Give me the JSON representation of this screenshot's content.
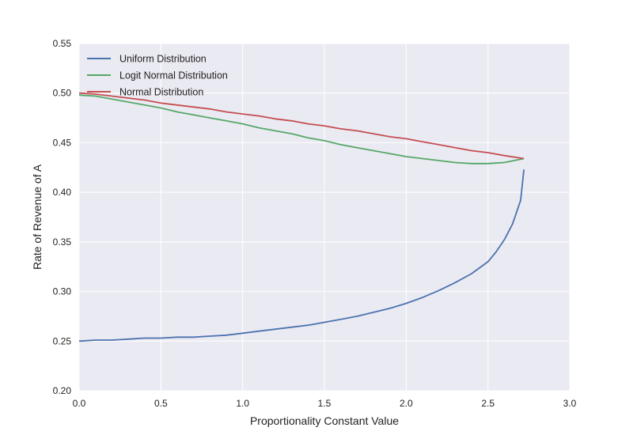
{
  "chart_data": {
    "type": "line",
    "title": "",
    "xlabel": "Proportionality Constant Value",
    "ylabel": "Rate of Revenue of A",
    "xlim": [
      0.0,
      3.0
    ],
    "ylim": [
      0.2,
      0.55
    ],
    "xticks": [
      "0.0",
      "0.5",
      "1.0",
      "1.5",
      "2.0",
      "2.5",
      "3.0"
    ],
    "yticks": [
      "0.20",
      "0.25",
      "0.30",
      "0.35",
      "0.40",
      "0.45",
      "0.50",
      "0.55"
    ],
    "grid": true,
    "legend_position": "top-left",
    "background": "#eaeaf2",
    "series": [
      {
        "name": "Uniform Distribution",
        "color": "#4c72b0",
        "x": [
          0.0,
          0.1,
          0.2,
          0.3,
          0.4,
          0.5,
          0.6,
          0.7,
          0.8,
          0.9,
          1.0,
          1.1,
          1.2,
          1.3,
          1.4,
          1.5,
          1.6,
          1.7,
          1.8,
          1.9,
          2.0,
          2.1,
          2.2,
          2.3,
          2.4,
          2.5,
          2.55,
          2.6,
          2.65,
          2.7,
          2.72
        ],
        "y": [
          0.25,
          0.251,
          0.251,
          0.252,
          0.253,
          0.253,
          0.254,
          0.254,
          0.255,
          0.256,
          0.258,
          0.26,
          0.262,
          0.264,
          0.266,
          0.269,
          0.272,
          0.275,
          0.279,
          0.283,
          0.288,
          0.294,
          0.301,
          0.309,
          0.318,
          0.33,
          0.34,
          0.352,
          0.368,
          0.392,
          0.423
        ]
      },
      {
        "name": "Logit Normal Distribution",
        "color": "#55a868",
        "x": [
          0.0,
          0.1,
          0.2,
          0.3,
          0.4,
          0.5,
          0.6,
          0.7,
          0.8,
          0.9,
          1.0,
          1.1,
          1.2,
          1.3,
          1.4,
          1.5,
          1.6,
          1.7,
          1.8,
          1.9,
          2.0,
          2.1,
          2.2,
          2.3,
          2.4,
          2.5,
          2.6,
          2.72
        ],
        "y": [
          0.498,
          0.497,
          0.494,
          0.491,
          0.488,
          0.485,
          0.481,
          0.478,
          0.475,
          0.472,
          0.469,
          0.465,
          0.462,
          0.459,
          0.455,
          0.452,
          0.448,
          0.445,
          0.442,
          0.439,
          0.436,
          0.434,
          0.432,
          0.43,
          0.429,
          0.429,
          0.43,
          0.434
        ]
      },
      {
        "name": "Normal Distribution",
        "color": "#c44e52",
        "x": [
          0.0,
          0.1,
          0.2,
          0.3,
          0.4,
          0.5,
          0.6,
          0.7,
          0.8,
          0.9,
          1.0,
          1.1,
          1.2,
          1.3,
          1.4,
          1.5,
          1.6,
          1.7,
          1.8,
          1.9,
          2.0,
          2.1,
          2.2,
          2.3,
          2.4,
          2.5,
          2.6,
          2.72
        ],
        "y": [
          0.5,
          0.499,
          0.497,
          0.495,
          0.493,
          0.49,
          0.488,
          0.486,
          0.484,
          0.481,
          0.479,
          0.477,
          0.474,
          0.472,
          0.469,
          0.467,
          0.464,
          0.462,
          0.459,
          0.456,
          0.454,
          0.451,
          0.448,
          0.445,
          0.442,
          0.44,
          0.437,
          0.434
        ]
      }
    ]
  }
}
